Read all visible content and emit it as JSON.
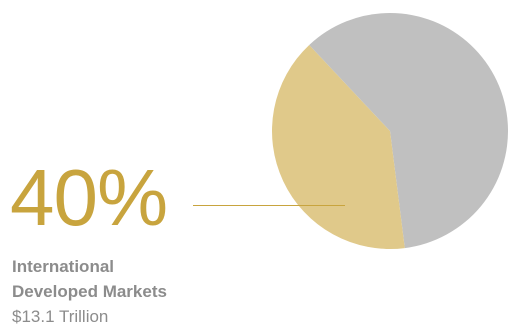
{
  "chart_data": {
    "type": "pie",
    "slices": [
      {
        "value": 48,
        "color": "#c0c0c0"
      },
      {
        "value": 40,
        "color": "#e0c98a"
      },
      {
        "value": 12,
        "color": "#c0c0c0"
      }
    ],
    "highlight": {
      "percent_label": "40%",
      "name_line1": "International",
      "name_line2": "Developed Markets",
      "amount": "$13.1 Trillion",
      "accent_color": "#c8a43e"
    }
  }
}
